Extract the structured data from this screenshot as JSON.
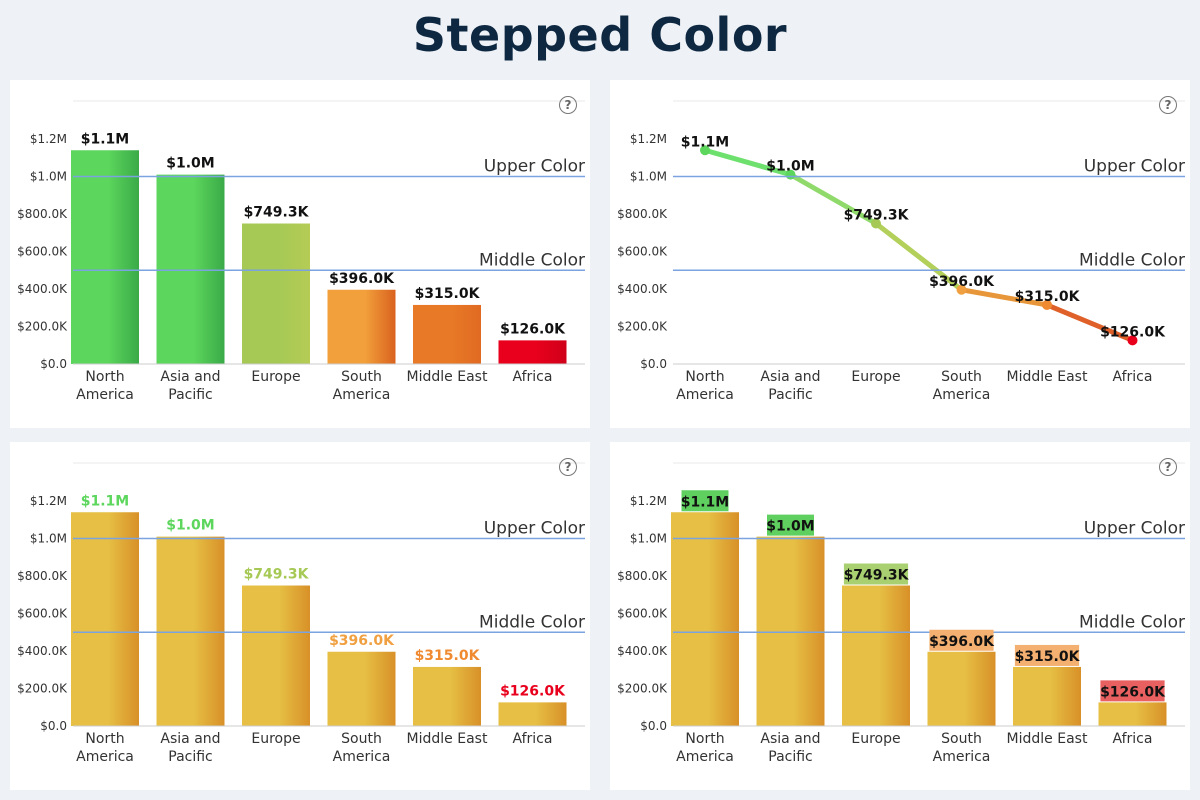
{
  "title": "Stepped Color",
  "colors": {
    "green": "#5cd65c",
    "green_dark": "#3aaa48",
    "lime": "#a6c955",
    "orange": "#f2a03c",
    "orange_dark": "#e87a27",
    "red": "#e8001c",
    "gold": "#e6bf44",
    "gold_dark": "#d89028",
    "threshold_line": "#7aa3e0",
    "label_green": "#5cd65c",
    "label_lime": "#a6c955",
    "label_orange": "#f0a040",
    "label_orange_dark": "#f08a30",
    "label_red": "#e8001c",
    "box_green": "#5fd05f",
    "box_lime": "#a8d070",
    "box_orange": "#f3b070",
    "box_red": "#e86060"
  },
  "icons": {
    "help": "help-circle-icon"
  },
  "chart_data": [
    {
      "type": "bar",
      "variant": "bar-fill-stepped",
      "categories": [
        [
          "North",
          "America"
        ],
        [
          "Asia and",
          "Pacific"
        ],
        [
          "Europe"
        ],
        [
          "South",
          "America"
        ],
        [
          "Middle East"
        ],
        [
          "Africa"
        ]
      ],
      "values": [
        1140000,
        1010000,
        749300,
        396000,
        315000,
        126000
      ],
      "value_labels": [
        "$1.1M",
        "$1.0M",
        "$749.3K",
        "$396.0K",
        "$315.0K",
        "$126.0K"
      ],
      "ylim": [
        0,
        1200000
      ],
      "yticks": [
        "$0.0",
        "$200.0K",
        "$400.0K",
        "$600.0K",
        "$800.0K",
        "$1.0M",
        "$1.2M"
      ],
      "thresholds": [
        {
          "label": "Upper Color",
          "value": 1000000
        },
        {
          "label": "Middle Color",
          "value": 500000
        }
      ]
    },
    {
      "type": "line",
      "variant": "line-stepped",
      "categories": [
        [
          "North",
          "America"
        ],
        [
          "Asia and",
          "Pacific"
        ],
        [
          "Europe"
        ],
        [
          "South",
          "America"
        ],
        [
          "Middle East"
        ],
        [
          "Africa"
        ]
      ],
      "values": [
        1140000,
        1010000,
        749300,
        396000,
        315000,
        126000
      ],
      "value_labels": [
        "$1.1M",
        "$1.0M",
        "$749.3K",
        "$396.0K",
        "$315.0K",
        "$126.0K"
      ],
      "ylim": [
        0,
        1200000
      ],
      "yticks": [
        "$0.0",
        "$200.0K",
        "$400.0K",
        "$600.0K",
        "$800.0K",
        "$1.0M",
        "$1.2M"
      ],
      "thresholds": [
        {
          "label": "Upper Color",
          "value": 1000000
        },
        {
          "label": "Middle Color",
          "value": 500000
        }
      ]
    },
    {
      "type": "bar",
      "variant": "label-color-stepped",
      "categories": [
        [
          "North",
          "America"
        ],
        [
          "Asia and",
          "Pacific"
        ],
        [
          "Europe"
        ],
        [
          "South",
          "America"
        ],
        [
          "Middle East"
        ],
        [
          "Africa"
        ]
      ],
      "values": [
        1140000,
        1010000,
        749300,
        396000,
        315000,
        126000
      ],
      "value_labels": [
        "$1.1M",
        "$1.0M",
        "$749.3K",
        "$396.0K",
        "$315.0K",
        "$126.0K"
      ],
      "ylim": [
        0,
        1200000
      ],
      "yticks": [
        "$0.0",
        "$200.0K",
        "$400.0K",
        "$600.0K",
        "$800.0K",
        "$1.0M",
        "$1.2M"
      ],
      "thresholds": [
        {
          "label": "Upper Color",
          "value": 1000000
        },
        {
          "label": "Middle Color",
          "value": 500000
        }
      ]
    },
    {
      "type": "bar",
      "variant": "label-background-stepped",
      "categories": [
        [
          "North",
          "America"
        ],
        [
          "Asia and",
          "Pacific"
        ],
        [
          "Europe"
        ],
        [
          "South",
          "America"
        ],
        [
          "Middle East"
        ],
        [
          "Africa"
        ]
      ],
      "values": [
        1140000,
        1010000,
        749300,
        396000,
        315000,
        126000
      ],
      "value_labels": [
        "$1.1M",
        "$1.0M",
        "$749.3K",
        "$396.0K",
        "$315.0K",
        "$126.0K"
      ],
      "ylim": [
        0,
        1200000
      ],
      "yticks": [
        "$0.0",
        "$200.0K",
        "$400.0K",
        "$600.0K",
        "$800.0K",
        "$1.0M",
        "$1.2M"
      ],
      "thresholds": [
        {
          "label": "Upper Color",
          "value": 1000000
        },
        {
          "label": "Middle Color",
          "value": 500000
        }
      ]
    }
  ]
}
